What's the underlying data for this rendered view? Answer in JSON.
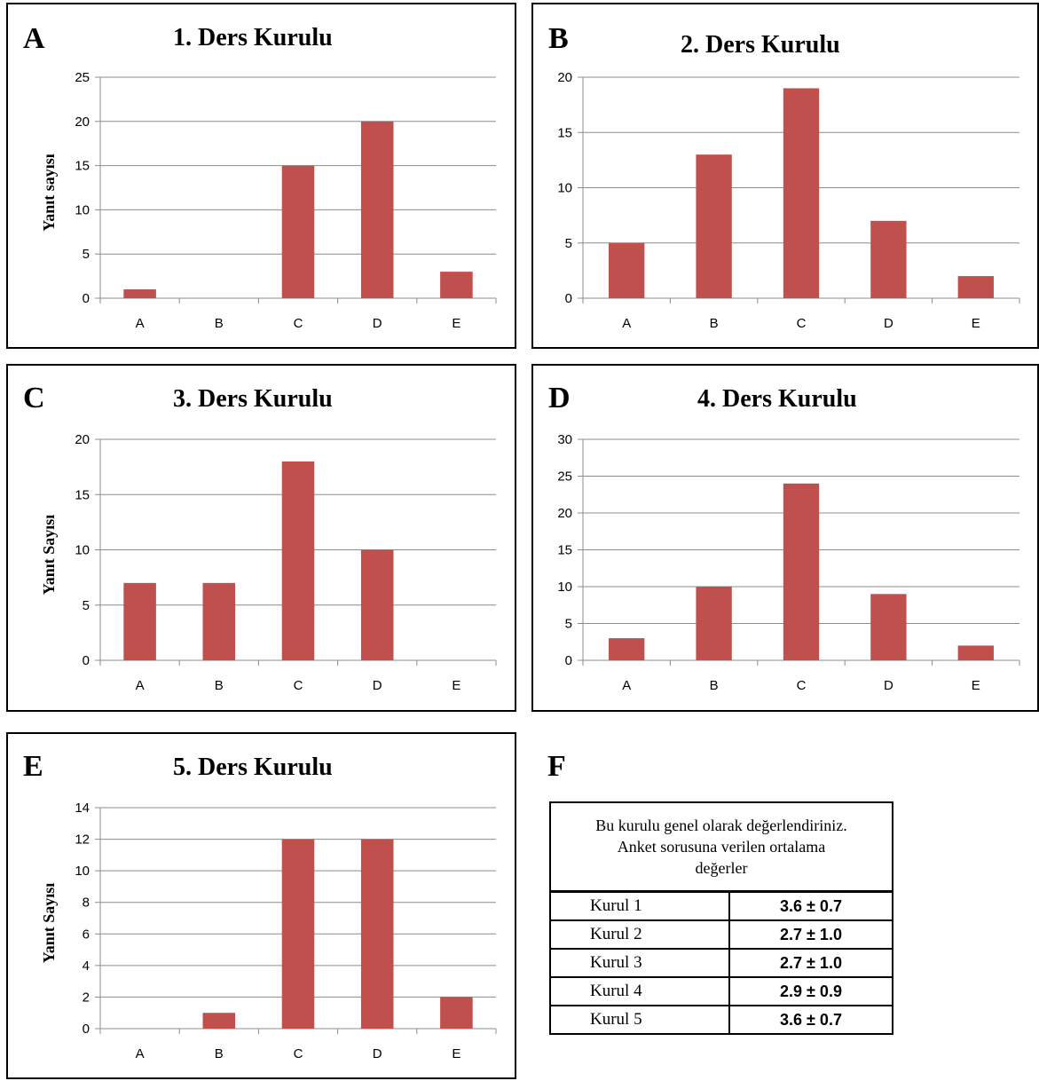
{
  "chart_data": [
    {
      "panel": "A",
      "type": "bar",
      "title": "1. Ders Kurulu",
      "ylabel": "Yanıt sayısı",
      "categories": [
        "A",
        "B",
        "C",
        "D",
        "E"
      ],
      "values": [
        1,
        0,
        15,
        20,
        3
      ],
      "ylim": [
        0,
        25
      ],
      "yticks": [
        0,
        5,
        10,
        15,
        20,
        25
      ],
      "grid": true,
      "bar_color": "#c0504d"
    },
    {
      "panel": "B",
      "type": "bar",
      "title": "2. Ders Kurulu",
      "ylabel": "",
      "categories": [
        "A",
        "B",
        "C",
        "D",
        "E"
      ],
      "values": [
        5,
        13,
        19,
        7,
        2
      ],
      "ylim": [
        0,
        20
      ],
      "yticks": [
        0,
        5,
        10,
        15,
        20
      ],
      "grid": true,
      "bar_color": "#c0504d"
    },
    {
      "panel": "C",
      "type": "bar",
      "title": "3. Ders Kurulu",
      "ylabel": "Yanıt Sayısı",
      "categories": [
        "A",
        "B",
        "C",
        "D",
        "E"
      ],
      "values": [
        7,
        7,
        18,
        10,
        0
      ],
      "ylim": [
        0,
        20
      ],
      "yticks": [
        0,
        5,
        10,
        15,
        20
      ],
      "grid": true,
      "bar_color": "#c0504d"
    },
    {
      "panel": "D",
      "type": "bar",
      "title": "4. Ders Kurulu",
      "ylabel": "",
      "categories": [
        "A",
        "B",
        "C",
        "D",
        "E"
      ],
      "values": [
        3,
        10,
        24,
        9,
        2
      ],
      "ylim": [
        0,
        30
      ],
      "yticks": [
        0,
        5,
        10,
        15,
        20,
        25,
        30
      ],
      "grid": true,
      "bar_color": "#c0504d"
    },
    {
      "panel": "E",
      "type": "bar",
      "title": "5. Ders Kurulu",
      "ylabel": "Yanıt Sayısı",
      "categories": [
        "A",
        "B",
        "C",
        "D",
        "E"
      ],
      "values": [
        0,
        1,
        12,
        12,
        2
      ],
      "ylim": [
        0,
        14
      ],
      "yticks": [
        0,
        2,
        4,
        6,
        8,
        10,
        12,
        14
      ],
      "grid": true,
      "bar_color": "#c0504d"
    }
  ],
  "table": {
    "panel": "F",
    "header_lines": [
      "Bu kurulu genel olarak değerlendiriniz.",
      "Anket sorusuna verilen ortalama",
      "değerler"
    ],
    "rows": [
      {
        "name": "Kurul 1",
        "value": "3.6 ± 0.7"
      },
      {
        "name": "Kurul 2",
        "value": "2.7 ± 1.0"
      },
      {
        "name": "Kurul 3",
        "value": "2.7 ± 1.0"
      },
      {
        "name": "Kurul 4",
        "value": "2.9 ± 0.9"
      },
      {
        "name": "Kurul 5",
        "value": "3.6 ± 0.7"
      }
    ]
  }
}
